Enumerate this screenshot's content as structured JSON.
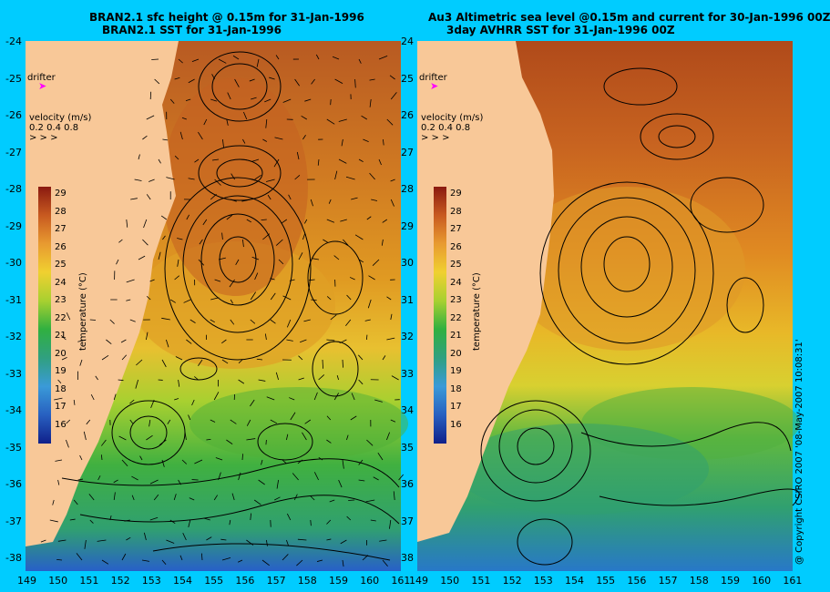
{
  "left_panel": {
    "title_line1": "BRAN2.1 sfc height @ 0.15m for 31-Jan-1996",
    "title_line2": "BRAN2.1 SST for 31-Jan-1996"
  },
  "right_panel": {
    "title_line1": "Au3 Altimetric sea level  @0.15m and current for 30-Jan-1996 00Z",
    "title_line2": "3day AVHRR SST for 31-Jan-1996 00Z"
  },
  "legend": {
    "drifter_label": "drifter",
    "velocity_title": "velocity (m/s)",
    "velocity_scale": "0.2 0.4 0.8",
    "colorbar_title": "temperature (°C)",
    "colorbar_ticks": [
      "29",
      "28",
      "27",
      "26",
      "25",
      "24",
      "23",
      "22",
      "21",
      "20",
      "19",
      "18",
      "17",
      "16"
    ]
  },
  "axes": {
    "y_ticks": [
      "-24",
      "-25",
      "-26",
      "-27",
      "-28",
      "-29",
      "-30",
      "-31",
      "-32",
      "-33",
      "-34",
      "-35",
      "-36",
      "-37",
      "-38"
    ],
    "x_ticks_left": [
      "149",
      "150",
      "151",
      "152",
      "153",
      "154",
      "155",
      "156",
      "157",
      "158",
      "159",
      "160",
      "161"
    ],
    "x_ticks_right": [
      "149",
      "150",
      "151",
      "152",
      "153",
      "154",
      "155",
      "156",
      "157",
      "158",
      "159",
      "160",
      "161"
    ]
  },
  "copyright": "@ Copyright CSIRO 2007 '08-May-2007 10:08:31'",
  "colors": {
    "background": "#00ccff",
    "land": "#f8c898",
    "warm": "#c0501a",
    "cool": "#1a9840"
  }
}
